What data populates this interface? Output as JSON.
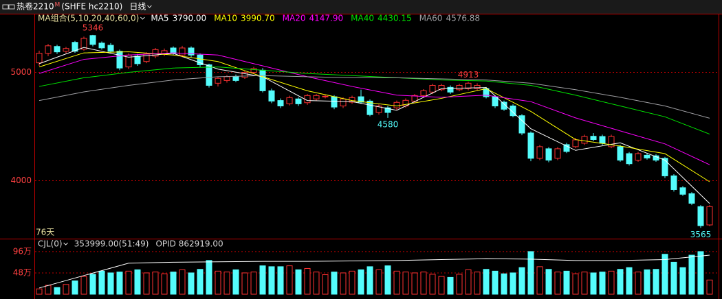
{
  "header": {
    "symbol": "热卷2210",
    "flag": "M",
    "code": "(SHFE hc2210)",
    "period": "日线"
  },
  "chart_data": [
    {
      "type": "candlestick",
      "legend_title": "MA组合(5,10,20,40,60,0)",
      "period_label": "76天",
      "ylim": [
        3478,
        5478
      ],
      "yticks": [
        5000,
        4000
      ],
      "grid": true,
      "up_color": "#ff3232",
      "down_color": "#54fcfc",
      "ohlc": [
        [
          5088,
          5200,
          5060,
          5176
        ],
        [
          5176,
          5262,
          5150,
          5245
        ],
        [
          5239,
          5255,
          5170,
          5189
        ],
        [
          5195,
          5235,
          5175,
          5220
        ],
        [
          5277,
          5290,
          5180,
          5195
        ],
        [
          5214,
          5330,
          5200,
          5314
        ],
        [
          5340,
          5346,
          5240,
          5258
        ],
        [
          5270,
          5285,
          5210,
          5226
        ],
        [
          5250,
          5270,
          5180,
          5195
        ],
        [
          5195,
          5210,
          5020,
          5040
        ],
        [
          5050,
          5175,
          5030,
          5160
        ],
        [
          5150,
          5170,
          5060,
          5080
        ],
        [
          5100,
          5185,
          5085,
          5170
        ],
        [
          5150,
          5225,
          5130,
          5210
        ],
        [
          5170,
          5220,
          5150,
          5200
        ],
        [
          5225,
          5240,
          5160,
          5175
        ],
        [
          5160,
          5245,
          5140,
          5225
        ],
        [
          5225,
          5240,
          5140,
          5160
        ],
        [
          5160,
          5175,
          5050,
          5070
        ],
        [
          5070,
          5080,
          4860,
          4880
        ],
        [
          4900,
          4960,
          4870,
          4945
        ],
        [
          4925,
          4975,
          4905,
          4960
        ],
        [
          4960,
          4980,
          4910,
          4925
        ],
        [
          4955,
          5015,
          4940,
          5000
        ],
        [
          5000,
          5050,
          4985,
          5035
        ],
        [
          5020,
          5040,
          4815,
          4830
        ],
        [
          4830,
          4850,
          4715,
          4735
        ],
        [
          4740,
          4760,
          4670,
          4690
        ],
        [
          4710,
          4785,
          4695,
          4767
        ],
        [
          4755,
          4770,
          4690,
          4710
        ],
        [
          4720,
          4800,
          4700,
          4786
        ],
        [
          4755,
          4800,
          4740,
          4786
        ],
        [
          4775,
          4795,
          4760,
          4780
        ],
        [
          4775,
          4790,
          4660,
          4680
        ],
        [
          4690,
          4770,
          4670,
          4755
        ],
        [
          4725,
          4785,
          4710,
          4767
        ],
        [
          4775,
          4840,
          4710,
          4725
        ],
        [
          4735,
          4750,
          4595,
          4610
        ],
        [
          4630,
          4705,
          4610,
          4690
        ],
        [
          4673,
          4690,
          4580,
          4630
        ],
        [
          4673,
          4740,
          4655,
          4723
        ],
        [
          4690,
          4760,
          4675,
          4742
        ],
        [
          4735,
          4800,
          4720,
          4786
        ],
        [
          4786,
          4845,
          4770,
          4830
        ],
        [
          4818,
          4895,
          4800,
          4880
        ],
        [
          4840,
          4895,
          4825,
          4880
        ],
        [
          4862,
          4880,
          4800,
          4818
        ],
        [
          4840,
          4895,
          4825,
          4880
        ],
        [
          4850,
          4913,
          4835,
          4900
        ],
        [
          4850,
          4900,
          4835,
          4880
        ],
        [
          4850,
          4865,
          4760,
          4775
        ],
        [
          4775,
          4790,
          4670,
          4690
        ],
        [
          4725,
          4740,
          4645,
          4660
        ],
        [
          4690,
          4705,
          4585,
          4600
        ],
        [
          4600,
          4615,
          4420,
          4440
        ],
        [
          4440,
          4455,
          4180,
          4207
        ],
        [
          4207,
          4330,
          4190,
          4314
        ],
        [
          4295,
          4310,
          4170,
          4190
        ],
        [
          4207,
          4310,
          4190,
          4295
        ],
        [
          4333,
          4350,
          4255,
          4270
        ],
        [
          4314,
          4395,
          4300,
          4377
        ],
        [
          4346,
          4425,
          4330,
          4408
        ],
        [
          4410,
          4440,
          4365,
          4380
        ],
        [
          4408,
          4425,
          4330,
          4346
        ],
        [
          4314,
          4425,
          4300,
          4408
        ],
        [
          4314,
          4330,
          4175,
          4190
        ],
        [
          4250,
          4265,
          4140,
          4157
        ],
        [
          4190,
          4265,
          4175,
          4250
        ],
        [
          4235,
          4250,
          4195,
          4210
        ],
        [
          4230,
          4245,
          4175,
          4190
        ],
        [
          4207,
          4220,
          4025,
          4045
        ],
        [
          4045,
          4060,
          3900,
          3918
        ],
        [
          3935,
          3950,
          3860,
          3875
        ],
        [
          3880,
          3895,
          3775,
          3792
        ],
        [
          3761,
          3775,
          3565,
          3585
        ],
        [
          3592,
          3775,
          3580,
          3761
        ]
      ],
      "high_labels": [
        5346,
        4913
      ],
      "low_labels": [
        4580,
        3565
      ],
      "series": [
        {
          "name": "MA5",
          "value_label": "3790.00",
          "color": "#ffffff",
          "x": [
            0,
            5,
            10,
            15,
            20,
            25,
            30,
            35,
            40,
            45,
            50,
            55,
            60,
            65,
            70,
            75
          ],
          "values": [
            5080,
            5230,
            5140,
            5175,
            5030,
            4960,
            4740,
            4730,
            4650,
            4850,
            4860,
            4480,
            4280,
            4350,
            4190,
            3790
          ]
        },
        {
          "name": "MA10",
          "value_label": "3990.70",
          "color": "#ffff00",
          "x": [
            0,
            5,
            10,
            15,
            20,
            25,
            30,
            35,
            40,
            45,
            50,
            55,
            60,
            65,
            70,
            75
          ],
          "values": [
            5050,
            5180,
            5190,
            5160,
            5100,
            4960,
            4830,
            4740,
            4690,
            4760,
            4850,
            4640,
            4380,
            4320,
            4250,
            3990.7
          ]
        },
        {
          "name": "MA20",
          "value_label": "4147.90",
          "color": "#ff00ff",
          "x": [
            0,
            5,
            10,
            15,
            20,
            25,
            30,
            35,
            40,
            45,
            50,
            55,
            60,
            65,
            70,
            75
          ],
          "values": [
            4990,
            5120,
            5160,
            5180,
            5160,
            5060,
            4960,
            4870,
            4790,
            4770,
            4790,
            4730,
            4580,
            4460,
            4340,
            4147.9
          ]
        },
        {
          "name": "MA40",
          "value_label": "4430.15",
          "color": "#00e600",
          "x": [
            0,
            5,
            10,
            15,
            20,
            25,
            30,
            35,
            40,
            45,
            50,
            55,
            60,
            65,
            70,
            75
          ],
          "values": [
            4870,
            4950,
            5000,
            5040,
            5050,
            5020,
            4990,
            4970,
            4950,
            4930,
            4920,
            4880,
            4790,
            4690,
            4590,
            4430.15
          ]
        },
        {
          "name": "MA60",
          "value_label": "4576.88",
          "color": "#a0a0a4",
          "x": [
            0,
            5,
            10,
            15,
            20,
            25,
            30,
            35,
            40,
            45,
            50,
            55,
            60,
            65,
            70,
            75
          ],
          "values": [
            4740,
            4820,
            4880,
            4930,
            4960,
            4970,
            4960,
            4950,
            4950,
            4940,
            4930,
            4900,
            4840,
            4770,
            4690,
            4576.88
          ]
        }
      ]
    },
    {
      "type": "bar",
      "title": "CJL(0)",
      "readout": "353999.00(51:49)",
      "opid_readout": "OPID 862919.00",
      "ylim": [
        0,
        119
      ],
      "yticks": [
        {
          "value": 96,
          "label": "96万"
        },
        {
          "value": 48,
          "label": "48万"
        }
      ],
      "grid": true,
      "values": [
        12,
        20,
        15,
        22,
        30,
        40,
        45,
        52,
        48,
        50,
        52,
        55,
        48,
        50,
        46,
        50,
        55,
        48,
        56,
        76,
        52,
        50,
        55,
        48,
        50,
        64,
        62,
        62,
        64,
        55,
        58,
        50,
        44,
        50,
        48,
        52,
        55,
        62,
        55,
        64,
        52,
        50,
        48,
        50,
        45,
        40,
        38,
        45,
        55,
        50,
        56,
        52,
        46,
        48,
        60,
        96,
        62,
        56,
        50,
        52,
        46,
        50,
        48,
        50,
        52,
        56,
        60,
        50,
        55,
        56,
        90,
        72,
        60,
        88,
        96,
        32
      ],
      "line": {
        "color": "#ffffff",
        "x": [
          0,
          5,
          10,
          15,
          20,
          25,
          30,
          35,
          40,
          45,
          50,
          55,
          60,
          65,
          70,
          75
        ],
        "values": [
          14,
          42,
          70,
          72,
          73,
          74,
          74,
          75,
          76,
          78,
          80,
          79,
          76,
          76,
          78,
          88
        ]
      }
    }
  ]
}
